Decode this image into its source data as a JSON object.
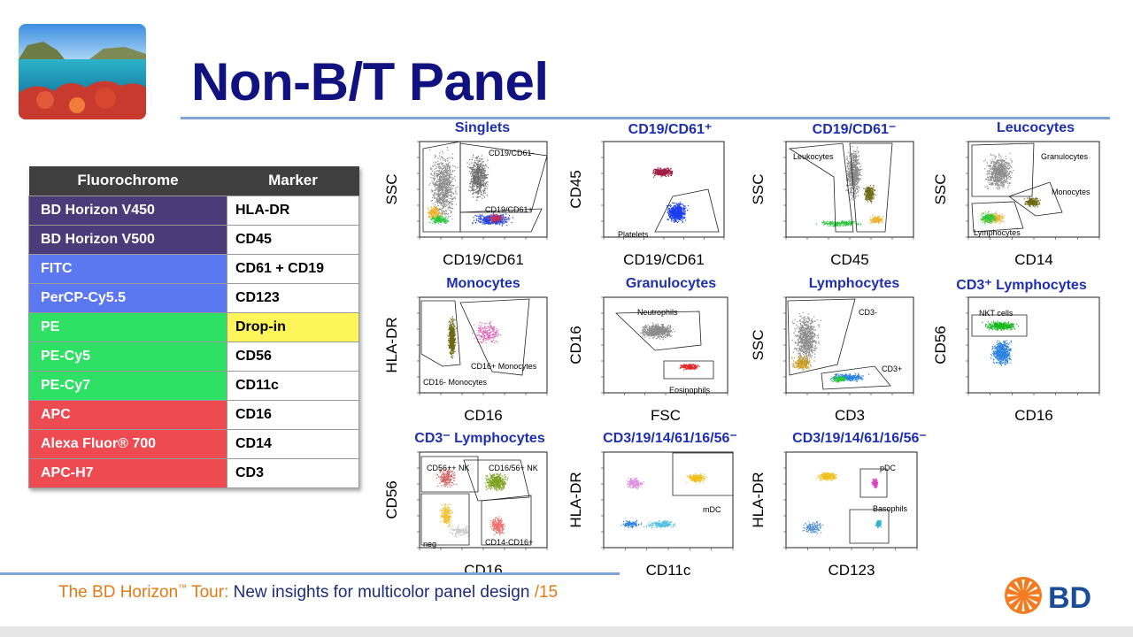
{
  "slide": {
    "title": "Non-B/T Panel",
    "footer": {
      "part1": "The BD Horizon",
      "tm": "™",
      "part2": " Tour: ",
      "part3": "New insights for multicolor panel design",
      "page": " /15"
    },
    "brand": "BD",
    "colors": {
      "title": "#10137f",
      "accent_rule": "#7ea3d5",
      "footer_orange": "#e57a14",
      "footer_navy": "#1d2b7a",
      "bd_orange": "#f47b20",
      "bd_blue": "#1a4c98"
    }
  },
  "panel_table": {
    "headers": [
      "Fluorochrome",
      "Marker"
    ],
    "rows": [
      {
        "fluorochrome": "BD Horizon V450",
        "marker": "HLA-DR",
        "color": "#4b3b78"
      },
      {
        "fluorochrome": "BD Horizon V500",
        "marker": "CD45",
        "color": "#4b3b78"
      },
      {
        "fluorochrome": "FITC",
        "marker": "CD61 + CD19",
        "color": "#5b78f0"
      },
      {
        "fluorochrome": "PerCP-Cy5.5",
        "marker": "CD123",
        "color": "#5b78f0"
      },
      {
        "fluorochrome": "PE",
        "marker": "Drop-in",
        "color": "#2ee064",
        "marker_bg": "#fdf55a"
      },
      {
        "fluorochrome": "PE-Cy5",
        "marker": "CD56",
        "color": "#2ee064"
      },
      {
        "fluorochrome": "PE-Cy7",
        "marker": "CD11c",
        "color": "#2ee064"
      },
      {
        "fluorochrome": "APC",
        "marker": "CD16",
        "color": "#ee4a52"
      },
      {
        "fluorochrome": "Alexa Fluor® 700",
        "marker": "CD14",
        "color": "#ee4a52"
      },
      {
        "fluorochrome": "APC-H7",
        "marker": "CD3",
        "color": "#ee4a52"
      }
    ]
  },
  "plots": [
    {
      "title": "Singlets",
      "x_label": "CD19/CD61",
      "y_label": "SSC",
      "gates": [
        "CD19/CD61-",
        "CD19/CD61+"
      ]
    },
    {
      "title": "CD19/CD61⁺",
      "x_label": "CD19/CD61",
      "y_label": "CD45",
      "gates": [
        "Platelets"
      ]
    },
    {
      "title": "CD19/CD61⁻",
      "x_label": "CD45",
      "y_label": "SSC",
      "gates": [
        "Leukocytes"
      ]
    },
    {
      "title": "Leucocytes",
      "x_label": "CD14",
      "y_label": "SSC",
      "gates": [
        "Granulocytes",
        "Monocytes",
        "Lymphocytes"
      ]
    },
    {
      "title": "Monocytes",
      "x_label": "CD16",
      "y_label": "HLA-DR",
      "gates": [
        "CD16+ Monocytes",
        "CD16- Monocytes"
      ]
    },
    {
      "title": "Granulocytes",
      "x_label": "FSC",
      "y_label": "CD16",
      "gates": [
        "Neutrophils",
        "Eosinophils"
      ]
    },
    {
      "title": "Lymphocytes",
      "x_label": "CD3",
      "y_label": "SSC",
      "gates": [
        "CD3-",
        "CD3+"
      ]
    },
    {
      "title": "CD3⁺ Lymphocytes",
      "x_label": "CD16",
      "y_label": "CD56",
      "gates": [
        "NKT cells"
      ]
    },
    {
      "title": "CD3⁻ Lymphocytes",
      "x_label": "CD16",
      "y_label": "CD56",
      "gates": [
        "CD56++ NK",
        "CD16/56+ NK",
        "neg",
        "CD14-CD16+"
      ]
    },
    {
      "title": "CD3/19/14/61/16/56⁻",
      "x_label": "CD11c",
      "y_label": "HLA-DR",
      "gates": [
        "mDC"
      ]
    },
    {
      "title": "CD3/19/14/61/16/56⁻",
      "x_label": "CD123",
      "y_label": "HLA-DR",
      "gates": [
        "pDC",
        "Basophils"
      ]
    }
  ]
}
